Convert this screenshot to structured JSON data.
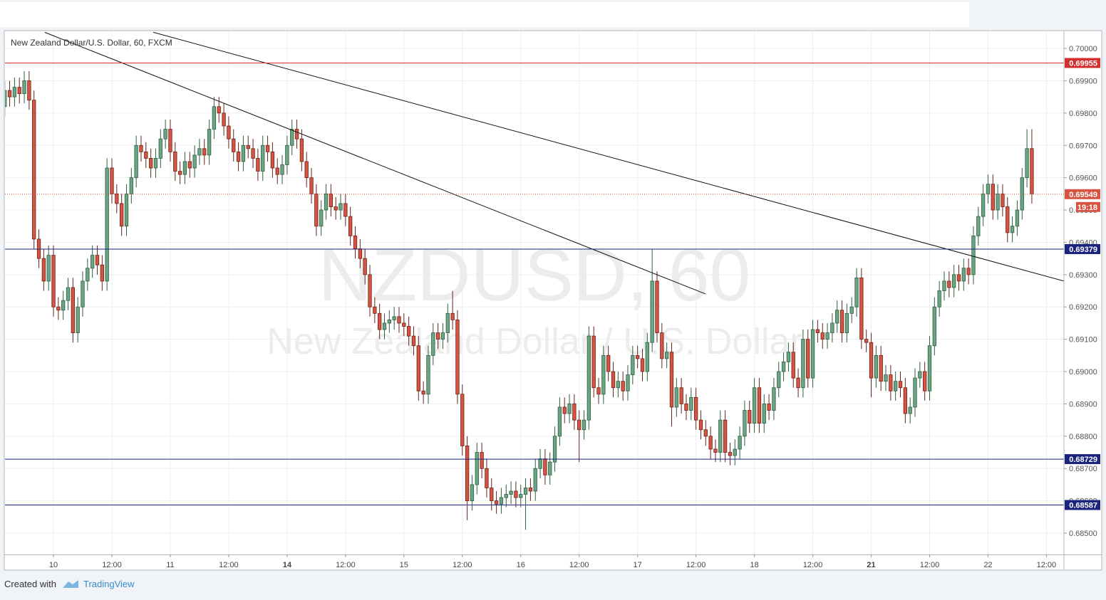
{
  "chart_data": {
    "type": "candlestick",
    "title": "New Zealand Dollar/U.S. Dollar, 60, FXCM",
    "watermark": "NZDUSD, 60",
    "watermark_subtitle": "New Zealand Dollar / U.S. Dollar",
    "up_color": "#6ba583",
    "down_color": "#d75442",
    "open": [
      0.6982,
      0.6987,
      0.6985,
      0.6988,
      0.6986,
      0.699,
      0.6984,
      0.6941,
      0.6935,
      0.6928,
      0.6936,
      0.692,
      0.6919,
      0.6922,
      0.6926,
      0.6912,
      0.692,
      0.6928,
      0.6932,
      0.6936,
      0.6933,
      0.6928,
      0.6963,
      0.6955,
      0.6952,
      0.6945,
      0.6955,
      0.696,
      0.697,
      0.6968,
      0.6966,
      0.6963,
      0.6966,
      0.6972,
      0.6975,
      0.6968,
      0.6962,
      0.6961,
      0.6965,
      0.6963,
      0.6967,
      0.6969,
      0.6967,
      0.6975,
      0.6982,
      0.698,
      0.6976,
      0.6972,
      0.6968,
      0.6965,
      0.697,
      0.6969,
      0.6966,
      0.6962,
      0.697,
      0.6968,
      0.6963,
      0.6961,
      0.6964,
      0.697,
      0.6975,
      0.6972,
      0.6965,
      0.696,
      0.6955,
      0.6945,
      0.695,
      0.6955,
      0.6951,
      0.695,
      0.6952,
      0.6948,
      0.6942,
      0.6938,
      0.6935,
      0.693,
      0.692,
      0.6918,
      0.6913,
      0.6915,
      0.6916,
      0.6917,
      0.6915,
      0.6914,
      0.6911,
      0.6908,
      0.6894,
      0.6893,
      0.6905,
      0.6912,
      0.691,
      0.6912,
      0.6918,
      0.6916,
      0.6893,
      0.6877,
      0.686,
      0.6865,
      0.6875,
      0.687,
      0.6864,
      0.686,
      0.6859,
      0.6861,
      0.6862,
      0.6863,
      0.6861,
      0.6862,
      0.6864,
      0.6863,
      0.687,
      0.6873,
      0.6868,
      0.6872,
      0.688,
      0.6889,
      0.6887,
      0.689,
      0.6885,
      0.6882,
      0.6885,
      0.6911,
      0.6895,
      0.6893,
      0.6905,
      0.69,
      0.6895,
      0.6897,
      0.6894,
      0.6899,
      0.6905,
      0.6904,
      0.69,
      0.6909,
      0.6928,
      0.6912,
      0.6904,
      0.6906,
      0.6889,
      0.6895,
      0.689,
      0.6888,
      0.6892,
      0.6885,
      0.6882,
      0.688,
      0.6876,
      0.6875,
      0.6885,
      0.6875,
      0.6874,
      0.6876,
      0.688,
      0.6888,
      0.6884,
      0.6895,
      0.6884,
      0.689,
      0.6888,
      0.6895,
      0.69,
      0.6903,
      0.6906,
      0.6898,
      0.6895,
      0.691,
      0.6898,
      0.6913,
      0.6912,
      0.691,
      0.6912,
      0.6915,
      0.6919,
      0.6912,
      0.6918,
      0.692,
      0.6929,
      0.691,
      0.6909,
      0.6898,
      0.6905,
      0.6897,
      0.6899,
      0.6894,
      0.6897,
      0.6895,
      0.6887,
      0.6889,
      0.6898,
      0.69,
      0.6894,
      0.6908,
      0.692,
      0.6925,
      0.6928,
      0.6926,
      0.693,
      0.6928,
      0.6932,
      0.693,
      0.6942,
      0.6948,
      0.6955,
      0.6958,
      0.695,
      0.6955,
      0.6951,
      0.6943,
      0.6945,
      0.695,
      0.696,
      0.6969
    ],
    "high": [
      0.699,
      0.699,
      0.6991,
      0.6991,
      0.6993,
      0.6993,
      0.6987,
      0.6944,
      0.6938,
      0.6939,
      0.6939,
      0.6923,
      0.6925,
      0.6929,
      0.6929,
      0.6923,
      0.6931,
      0.6935,
      0.6939,
      0.6939,
      0.6936,
      0.6966,
      0.6966,
      0.6958,
      0.6955,
      0.6958,
      0.6963,
      0.6973,
      0.6973,
      0.6971,
      0.6969,
      0.6969,
      0.6975,
      0.6978,
      0.6978,
      0.6971,
      0.6965,
      0.6968,
      0.6968,
      0.697,
      0.6972,
      0.6972,
      0.6978,
      0.6985,
      0.6985,
      0.6983,
      0.6979,
      0.6975,
      0.6971,
      0.6973,
      0.6973,
      0.6972,
      0.6969,
      0.6973,
      0.6973,
      0.6971,
      0.6966,
      0.6967,
      0.6973,
      0.6978,
      0.6978,
      0.6975,
      0.6968,
      0.6963,
      0.6958,
      0.6953,
      0.6958,
      0.6958,
      0.6954,
      0.6955,
      0.6955,
      0.6951,
      0.6945,
      0.6941,
      0.6938,
      0.6933,
      0.6923,
      0.6921,
      0.6918,
      0.6919,
      0.692,
      0.692,
      0.6918,
      0.6917,
      0.6914,
      0.6911,
      0.6897,
      0.6908,
      0.6915,
      0.6915,
      0.6915,
      0.6921,
      0.6925,
      0.6919,
      0.6896,
      0.688,
      0.6868,
      0.6878,
      0.6878,
      0.6873,
      0.6867,
      0.6863,
      0.6864,
      0.6865,
      0.6866,
      0.6866,
      0.6865,
      0.6867,
      0.6867,
      0.6873,
      0.6876,
      0.6876,
      0.6875,
      0.6883,
      0.6892,
      0.6892,
      0.6893,
      0.6893,
      0.6888,
      0.6888,
      0.6914,
      0.6914,
      0.6898,
      0.6908,
      0.6908,
      0.6903,
      0.69,
      0.69,
      0.6902,
      0.6908,
      0.6908,
      0.6907,
      0.6912,
      0.6938,
      0.6931,
      0.6915,
      0.6909,
      0.6909,
      0.6898,
      0.6898,
      0.6893,
      0.6895,
      0.6895,
      0.6888,
      0.6885,
      0.6883,
      0.6879,
      0.6888,
      0.6888,
      0.6878,
      0.6879,
      0.6883,
      0.6891,
      0.6891,
      0.6898,
      0.6898,
      0.6893,
      0.6893,
      0.6898,
      0.6903,
      0.6906,
      0.6909,
      0.6909,
      0.6901,
      0.6913,
      0.6913,
      0.6916,
      0.6916,
      0.6915,
      0.6915,
      0.6918,
      0.6922,
      0.6922,
      0.6921,
      0.6923,
      0.6932,
      0.6932,
      0.6913,
      0.6912,
      0.6908,
      0.6908,
      0.6902,
      0.6902,
      0.69,
      0.69,
      0.6898,
      0.6892,
      0.6901,
      0.6903,
      0.6903,
      0.6911,
      0.6923,
      0.6928,
      0.6931,
      0.6931,
      0.6933,
      0.6933,
      0.6935,
      0.6935,
      0.6945,
      0.6951,
      0.6958,
      0.6961,
      0.6961,
      0.6958,
      0.6958,
      0.6954,
      0.6948,
      0.6953,
      0.6963,
      0.6975,
      0.6975
    ],
    "low": [
      0.6979,
      0.6982,
      0.6982,
      0.6983,
      0.6983,
      0.6981,
      0.6938,
      0.6932,
      0.6925,
      0.6925,
      0.6917,
      0.6916,
      0.6916,
      0.6919,
      0.6909,
      0.6909,
      0.6917,
      0.6925,
      0.6929,
      0.693,
      0.6925,
      0.6925,
      0.6952,
      0.6949,
      0.6942,
      0.6942,
      0.6952,
      0.6957,
      0.6965,
      0.6963,
      0.696,
      0.696,
      0.6963,
      0.6969,
      0.6965,
      0.6959,
      0.6958,
      0.6958,
      0.696,
      0.696,
      0.6964,
      0.6964,
      0.6964,
      0.6972,
      0.6977,
      0.6973,
      0.6969,
      0.6965,
      0.6962,
      0.6962,
      0.6966,
      0.6963,
      0.6959,
      0.6959,
      0.6965,
      0.696,
      0.6958,
      0.6958,
      0.6961,
      0.6967,
      0.6969,
      0.6962,
      0.6957,
      0.6952,
      0.6942,
      0.6942,
      0.6947,
      0.6948,
      0.6947,
      0.6947,
      0.6945,
      0.6939,
      0.6935,
      0.6932,
      0.6927,
      0.6917,
      0.6915,
      0.691,
      0.691,
      0.6912,
      0.6913,
      0.6912,
      0.6911,
      0.6908,
      0.6905,
      0.6891,
      0.689,
      0.689,
      0.6902,
      0.6907,
      0.6907,
      0.6909,
      0.6913,
      0.689,
      0.6874,
      0.6854,
      0.6857,
      0.6862,
      0.6867,
      0.6861,
      0.6857,
      0.6856,
      0.6856,
      0.6858,
      0.6859,
      0.6858,
      0.6858,
      0.6851,
      0.686,
      0.686,
      0.6867,
      0.6865,
      0.6865,
      0.6869,
      0.6877,
      0.6884,
      0.6884,
      0.6882,
      0.6872,
      0.6879,
      0.6882,
      0.6892,
      0.689,
      0.689,
      0.6897,
      0.6892,
      0.6892,
      0.6891,
      0.6891,
      0.6896,
      0.6901,
      0.6897,
      0.6897,
      0.6906,
      0.6909,
      0.6901,
      0.6901,
      0.6883,
      0.6886,
      0.6887,
      0.6885,
      0.6885,
      0.6882,
      0.6879,
      0.6877,
      0.6873,
      0.6872,
      0.6872,
      0.6872,
      0.6871,
      0.6871,
      0.6873,
      0.6877,
      0.6881,
      0.6881,
      0.6881,
      0.6881,
      0.6885,
      0.6885,
      0.6892,
      0.6897,
      0.69,
      0.6895,
      0.6892,
      0.6892,
      0.6895,
      0.6895,
      0.6909,
      0.6907,
      0.6907,
      0.6909,
      0.6912,
      0.6909,
      0.6909,
      0.6915,
      0.6917,
      0.6907,
      0.6906,
      0.6892,
      0.6895,
      0.6894,
      0.6894,
      0.6891,
      0.6891,
      0.6892,
      0.6884,
      0.6884,
      0.6886,
      0.6895,
      0.6891,
      0.6891,
      0.6905,
      0.6917,
      0.6922,
      0.6923,
      0.6923,
      0.6925,
      0.6925,
      0.6927,
      0.6927,
      0.6939,
      0.6945,
      0.6952,
      0.6947,
      0.6947,
      0.6948,
      0.694,
      0.694,
      0.6942,
      0.6947,
      0.6957,
      0.6952
    ],
    "close": [
      0.6987,
      0.6985,
      0.6988,
      0.6986,
      0.699,
      0.6984,
      0.6941,
      0.6935,
      0.6928,
      0.6936,
      0.692,
      0.6919,
      0.6922,
      0.6926,
      0.6912,
      0.692,
      0.6928,
      0.6932,
      0.6936,
      0.6933,
      0.6928,
      0.6963,
      0.6955,
      0.6952,
      0.6945,
      0.6955,
      0.696,
      0.697,
      0.6968,
      0.6966,
      0.6963,
      0.6966,
      0.6972,
      0.6975,
      0.6968,
      0.6962,
      0.6961,
      0.6965,
      0.6963,
      0.6967,
      0.6969,
      0.6967,
      0.6975,
      0.6982,
      0.698,
      0.6976,
      0.6972,
      0.6968,
      0.6965,
      0.697,
      0.6969,
      0.6966,
      0.6962,
      0.697,
      0.6968,
      0.6963,
      0.6961,
      0.6964,
      0.697,
      0.6975,
      0.6972,
      0.6965,
      0.696,
      0.6955,
      0.6945,
      0.695,
      0.6955,
      0.6951,
      0.695,
      0.6952,
      0.6948,
      0.6942,
      0.6938,
      0.6935,
      0.693,
      0.692,
      0.6918,
      0.6913,
      0.6915,
      0.6916,
      0.6917,
      0.6915,
      0.6914,
      0.6911,
      0.6908,
      0.6894,
      0.6893,
      0.6905,
      0.6912,
      0.691,
      0.6912,
      0.6918,
      0.6916,
      0.6893,
      0.6877,
      0.686,
      0.6865,
      0.6875,
      0.687,
      0.6864,
      0.686,
      0.6859,
      0.6861,
      0.6862,
      0.6863,
      0.6861,
      0.6862,
      0.6864,
      0.6863,
      0.687,
      0.6873,
      0.6868,
      0.6872,
      0.688,
      0.6889,
      0.6887,
      0.689,
      0.6885,
      0.6882,
      0.6885,
      0.6911,
      0.6895,
      0.6893,
      0.6905,
      0.69,
      0.6895,
      0.6897,
      0.6894,
      0.6899,
      0.6905,
      0.6904,
      0.69,
      0.6909,
      0.6928,
      0.6912,
      0.6904,
      0.6906,
      0.6889,
      0.6895,
      0.689,
      0.6888,
      0.6892,
      0.6885,
      0.6882,
      0.688,
      0.6876,
      0.6875,
      0.6885,
      0.6875,
      0.6874,
      0.6876,
      0.688,
      0.6888,
      0.6884,
      0.6895,
      0.6884,
      0.689,
      0.6888,
      0.6895,
      0.69,
      0.6903,
      0.6906,
      0.6898,
      0.6895,
      0.691,
      0.6898,
      0.6913,
      0.6912,
      0.691,
      0.6912,
      0.6915,
      0.6919,
      0.6912,
      0.6918,
      0.692,
      0.6929,
      0.691,
      0.6909,
      0.6898,
      0.6905,
      0.6897,
      0.6899,
      0.6894,
      0.6897,
      0.6895,
      0.6887,
      0.6889,
      0.6898,
      0.69,
      0.6894,
      0.6908,
      0.692,
      0.6925,
      0.6928,
      0.6926,
      0.693,
      0.6928,
      0.6932,
      0.693,
      0.6942,
      0.6948,
      0.6955,
      0.6958,
      0.695,
      0.6955,
      0.6951,
      0.6943,
      0.6945,
      0.695,
      0.696,
      0.6969,
      0.6955
    ],
    "xlim": [
      0.04,
      217.6
    ],
    "xticks": [
      {
        "value": 10,
        "label": "10"
      },
      {
        "value": 22,
        "label": "12:00"
      },
      {
        "value": 34,
        "label": "11"
      },
      {
        "value": 46,
        "label": "12:00"
      },
      {
        "value": 58,
        "label": "14",
        "bold": true
      },
      {
        "value": 70,
        "label": "12:00"
      },
      {
        "value": 82,
        "label": "15"
      },
      {
        "value": 94,
        "label": "12:00"
      },
      {
        "value": 106,
        "label": "16"
      },
      {
        "value": 118,
        "label": "12:00"
      },
      {
        "value": 130,
        "label": "17"
      },
      {
        "value": 142,
        "label": "12:00"
      },
      {
        "value": 154,
        "label": "18"
      },
      {
        "value": 166,
        "label": "12:00"
      },
      {
        "value": 178,
        "label": "21",
        "bold": true
      },
      {
        "value": 190,
        "label": "12:00"
      },
      {
        "value": 202,
        "label": "22"
      },
      {
        "value": 214,
        "label": "12:00"
      }
    ],
    "ylim": [
      0.68434,
      0.70053
    ],
    "yticks": [
      {
        "value": 0.685,
        "label": "0.68500"
      },
      {
        "value": 0.686,
        "label": "0.68600"
      },
      {
        "value": 0.687,
        "label": "0.68700"
      },
      {
        "value": 0.688,
        "label": "0.68800"
      },
      {
        "value": 0.689,
        "label": "0.68900"
      },
      {
        "value": 0.69,
        "label": "0.69000"
      },
      {
        "value": 0.691,
        "label": "0.69100"
      },
      {
        "value": 0.692,
        "label": "0.69200"
      },
      {
        "value": 0.693,
        "label": "0.69300"
      },
      {
        "value": 0.694,
        "label": "0.69400"
      },
      {
        "value": 0.695,
        "label": "0.69500"
      },
      {
        "value": 0.696,
        "label": "0.69600"
      },
      {
        "value": 0.697,
        "label": "0.69700"
      },
      {
        "value": 0.698,
        "label": "0.69800"
      },
      {
        "value": 0.699,
        "label": "0.69900"
      },
      {
        "value": 0.7,
        "label": "0.70000"
      }
    ],
    "grid": true,
    "levels": [
      {
        "value": 0.69955,
        "color": "#d32f2f"
      },
      {
        "value": 0.69379,
        "color": "#1a237e"
      },
      {
        "value": 0.68729,
        "color": "#1a237e"
      },
      {
        "value": 0.68587,
        "color": "#1a237e"
      }
    ],
    "last_price": {
      "value": 0.69549,
      "countdown": "19:18",
      "color": "#d75442"
    },
    "trendlines": [
      {
        "x": [
          8.2,
          144
        ],
        "y": [
          0.7005,
          0.6924
        ]
      },
      {
        "x": [
          30.5,
          217.6
        ],
        "y": [
          0.7005,
          0.6928
        ]
      }
    ]
  },
  "footer": {
    "created_with": "Created with",
    "brand": "TradingView"
  }
}
